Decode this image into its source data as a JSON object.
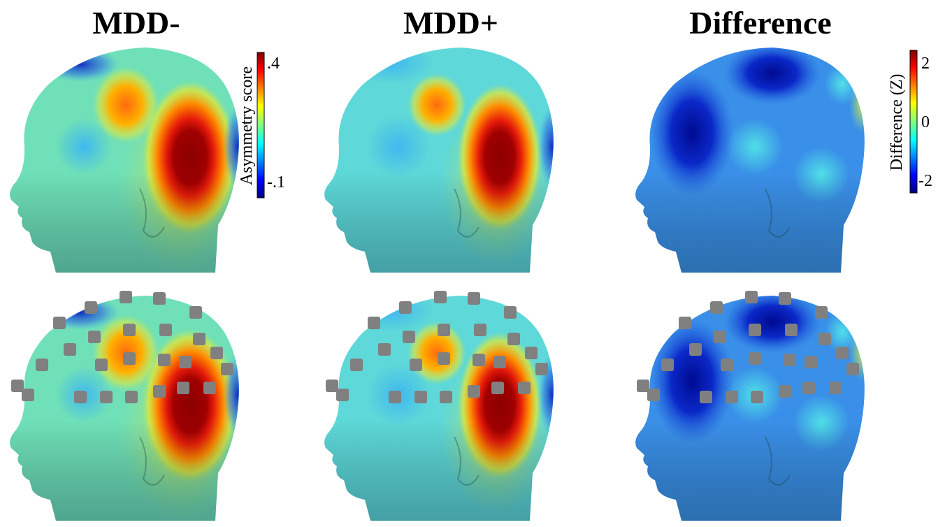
{
  "panels": [
    {
      "title": "MDD-"
    },
    {
      "title": "MDD+"
    },
    {
      "title": "Difference"
    }
  ],
  "colorbars": [
    {
      "label": "Asymmetry score",
      "ticks": [
        ".4",
        "-.1"
      ]
    },
    {
      "label": "Difference (Z)",
      "ticks": [
        "2",
        "0",
        "-2"
      ]
    }
  ]
}
